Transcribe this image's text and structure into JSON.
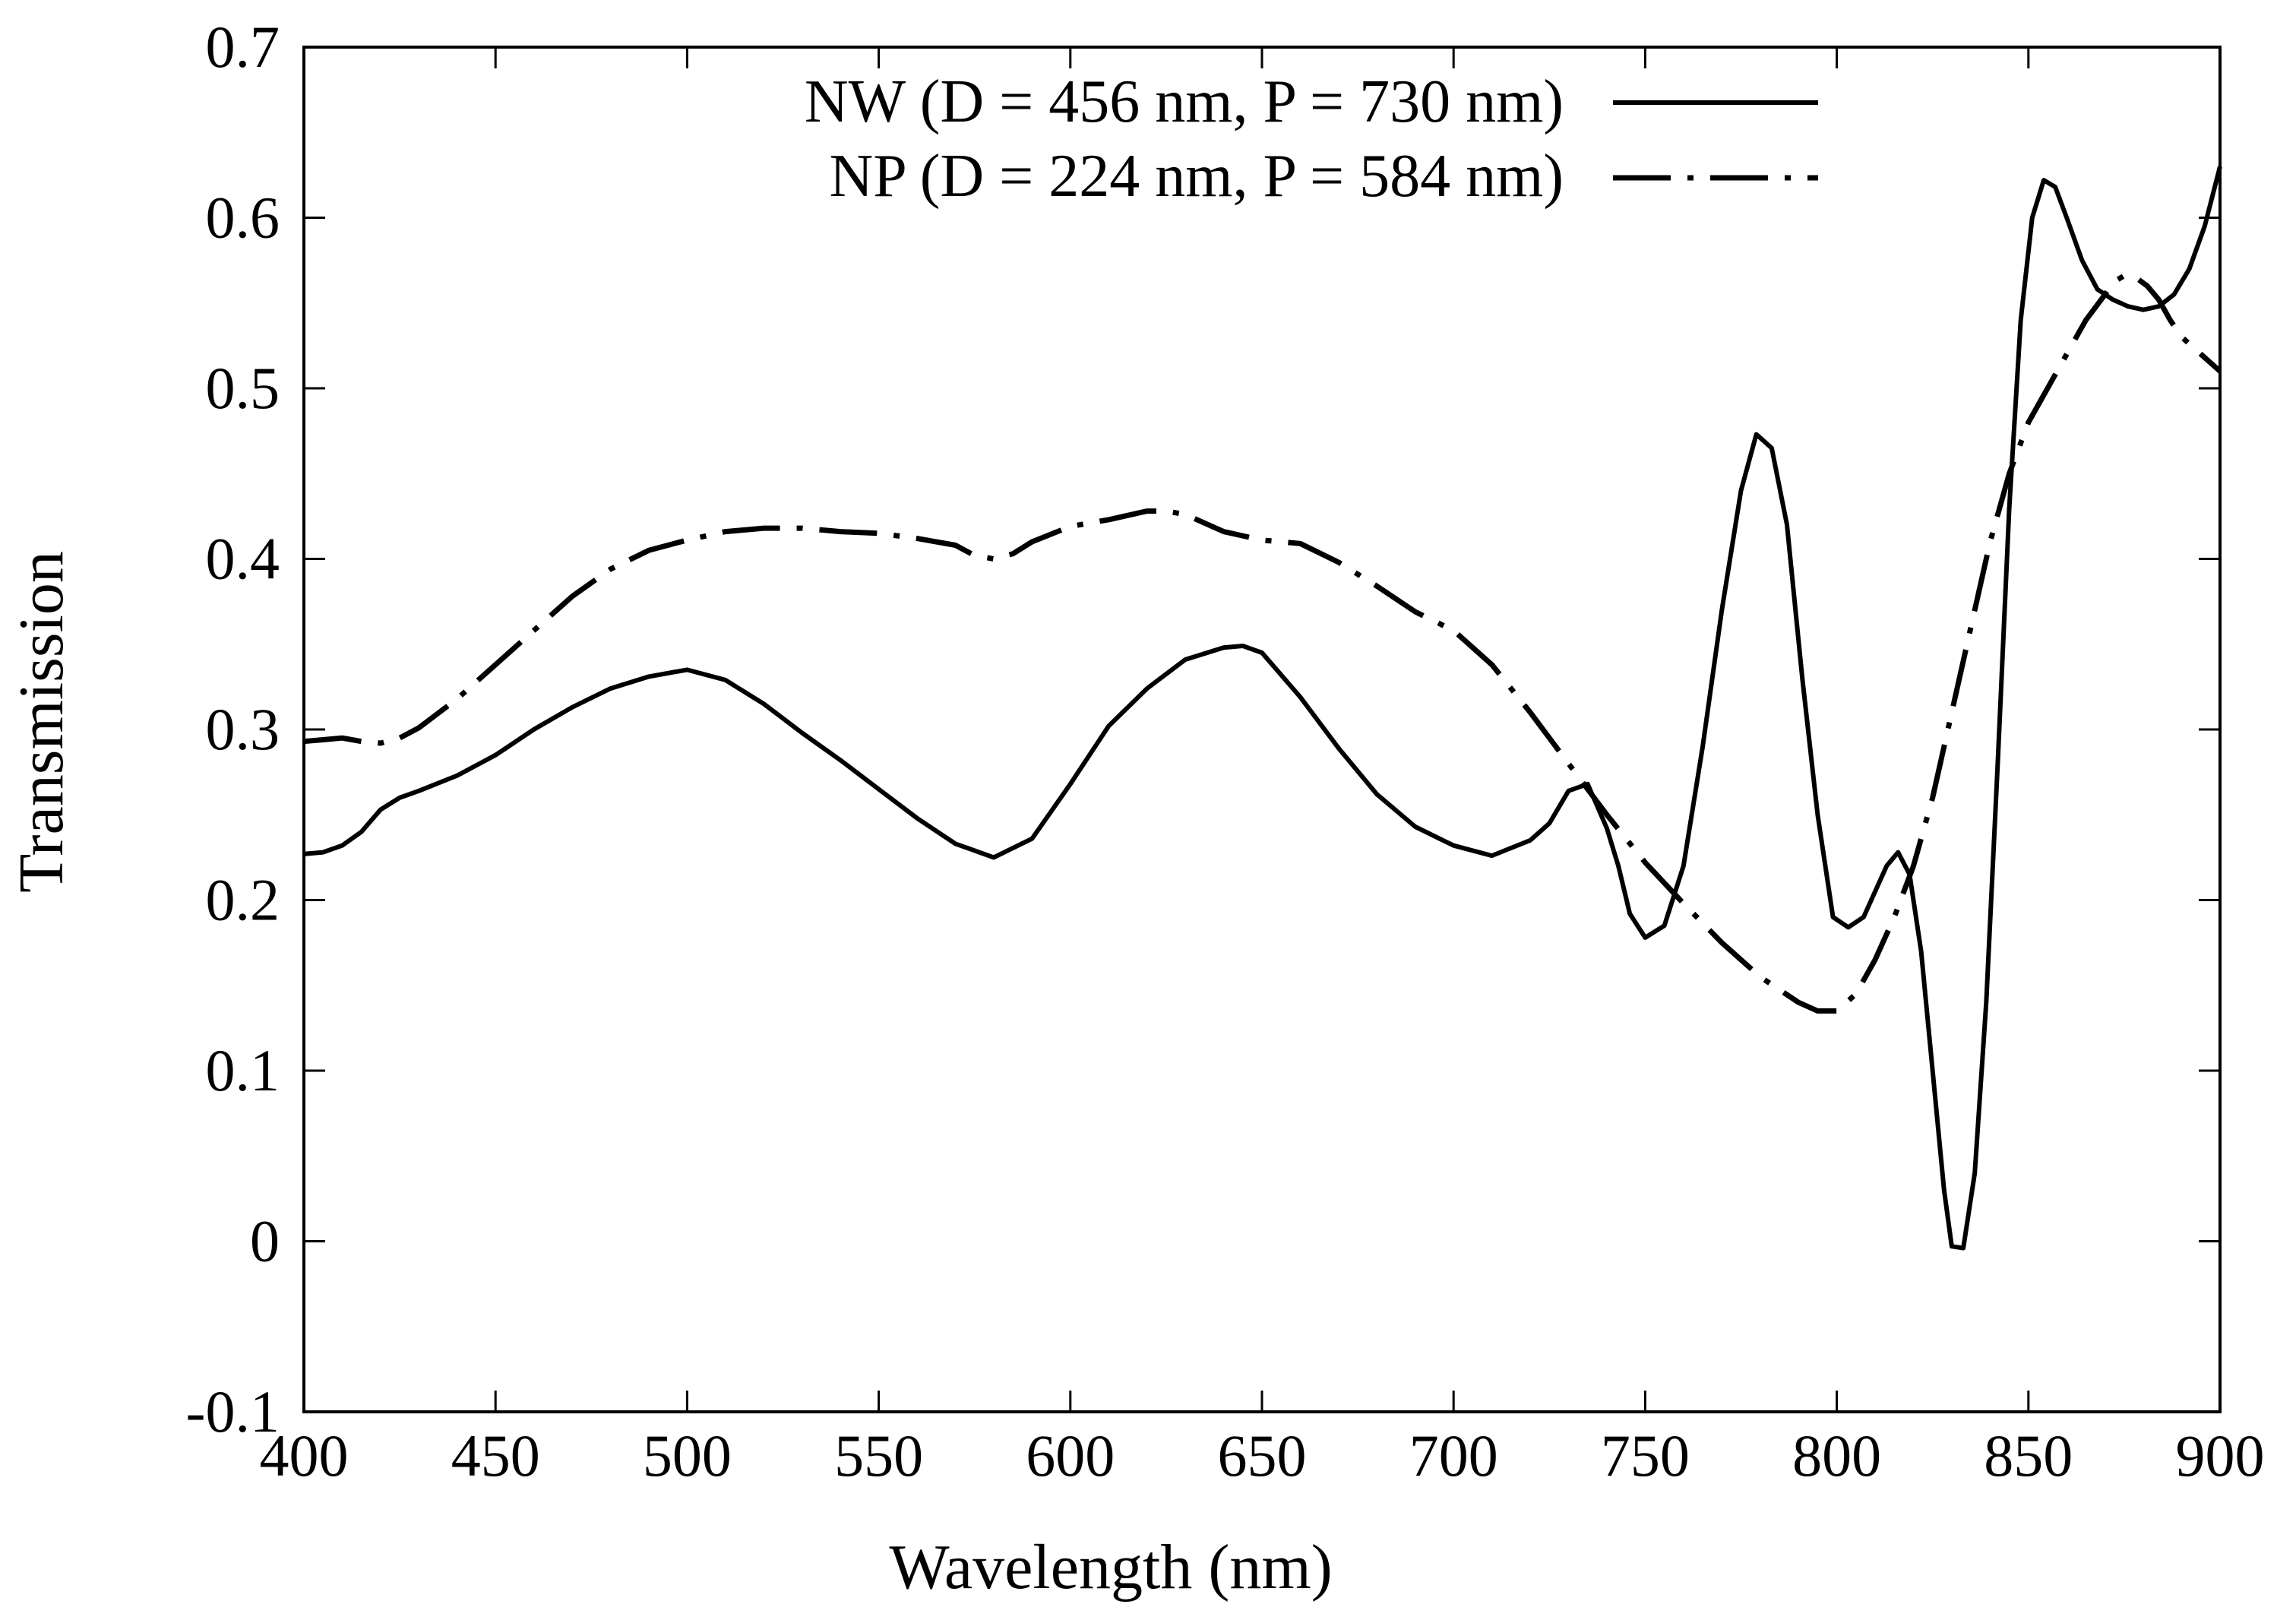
{
  "chart_data": {
    "type": "line",
    "title": "",
    "xlabel": "Wavelength (nm)",
    "ylabel": "Transmission",
    "xlim": [
      400,
      900
    ],
    "ylim": [
      -0.1,
      0.7
    ],
    "xticks": [
      400,
      450,
      500,
      550,
      600,
      650,
      700,
      750,
      800,
      850,
      900
    ],
    "xtick_labels": [
      "400",
      "450",
      "500",
      "550",
      "600",
      "650",
      "700",
      "750",
      "800",
      "850",
      "900"
    ],
    "yticks": [
      -0.1,
      0,
      0.1,
      0.2,
      0.3,
      0.4,
      0.5,
      0.6,
      0.7
    ],
    "ytick_labels": [
      "-0.1",
      "0",
      "0.1",
      "0.2",
      "0.3",
      "0.4",
      "0.5",
      "0.6",
      "0.7"
    ],
    "grid": false,
    "legend_position": "top",
    "series": [
      {
        "name": "NW (D = 456 nm, P = 730 nm)",
        "style": "solid",
        "color": "#000000",
        "x": [
          400,
          405,
          410,
          415,
          420,
          425,
          430,
          440,
          450,
          460,
          470,
          480,
          490,
          500,
          510,
          520,
          530,
          540,
          550,
          560,
          570,
          580,
          590,
          600,
          610,
          620,
          630,
          640,
          645,
          650,
          660,
          670,
          680,
          690,
          700,
          710,
          720,
          725,
          730,
          735,
          740,
          743,
          746,
          750,
          755,
          760,
          765,
          770,
          775,
          779,
          783,
          787,
          791,
          795,
          799,
          803,
          807,
          810,
          813,
          816,
          819,
          822,
          825,
          828,
          830,
          833,
          836,
          839,
          842,
          845,
          848,
          851,
          854,
          857,
          860,
          864,
          868,
          872,
          876,
          880,
          884,
          888,
          892,
          896,
          900
        ],
        "y": [
          0.227,
          0.228,
          0.232,
          0.24,
          0.253,
          0.26,
          0.264,
          0.273,
          0.285,
          0.3,
          0.313,
          0.324,
          0.331,
          0.335,
          0.329,
          0.315,
          0.298,
          0.282,
          0.265,
          0.248,
          0.233,
          0.225,
          0.236,
          0.268,
          0.302,
          0.324,
          0.341,
          0.348,
          0.349,
          0.345,
          0.319,
          0.289,
          0.262,
          0.243,
          0.232,
          0.226,
          0.235,
          0.245,
          0.264,
          0.268,
          0.242,
          0.22,
          0.192,
          0.178,
          0.185,
          0.22,
          0.29,
          0.37,
          0.44,
          0.473,
          0.465,
          0.42,
          0.33,
          0.25,
          0.19,
          0.184,
          0.19,
          0.205,
          0.22,
          0.228,
          0.215,
          0.17,
          0.1,
          0.03,
          -0.003,
          -0.004,
          0.04,
          0.14,
          0.28,
          0.43,
          0.54,
          0.6,
          0.622,
          0.618,
          0.6,
          0.575,
          0.558,
          0.552,
          0.548,
          0.546,
          0.548,
          0.555,
          0.57,
          0.595,
          0.63
        ]
      },
      {
        "name": "NP (D = 224 nm, P = 584 nm)",
        "style": "dashdot",
        "color": "#000000",
        "x": [
          400,
          405,
          410,
          415,
          420,
          425,
          430,
          440,
          450,
          460,
          470,
          480,
          490,
          500,
          510,
          520,
          530,
          540,
          550,
          560,
          570,
          575,
          580,
          585,
          590,
          600,
          610,
          620,
          625,
          630,
          640,
          650,
          660,
          670,
          680,
          690,
          700,
          710,
          720,
          730,
          740,
          750,
          760,
          770,
          780,
          790,
          795,
          800,
          805,
          810,
          815,
          820,
          825,
          830,
          835,
          840,
          845,
          850,
          855,
          860,
          865,
          870,
          872,
          875,
          878,
          881,
          884,
          887,
          890,
          895,
          900
        ],
        "y": [
          0.293,
          0.294,
          0.295,
          0.293,
          0.292,
          0.295,
          0.301,
          0.318,
          0.338,
          0.358,
          0.378,
          0.394,
          0.405,
          0.411,
          0.416,
          0.418,
          0.418,
          0.416,
          0.415,
          0.412,
          0.408,
          0.402,
          0.4,
          0.403,
          0.41,
          0.419,
          0.423,
          0.428,
          0.428,
          0.426,
          0.416,
          0.411,
          0.409,
          0.398,
          0.384,
          0.369,
          0.358,
          0.338,
          0.31,
          0.28,
          0.25,
          0.222,
          0.198,
          0.175,
          0.155,
          0.14,
          0.135,
          0.135,
          0.145,
          0.165,
          0.19,
          0.22,
          0.26,
          0.31,
          0.36,
          0.41,
          0.45,
          0.48,
          0.5,
          0.52,
          0.54,
          0.555,
          0.562,
          0.566,
          0.565,
          0.56,
          0.552,
          0.54,
          0.53,
          0.52,
          0.51
        ]
      }
    ]
  }
}
